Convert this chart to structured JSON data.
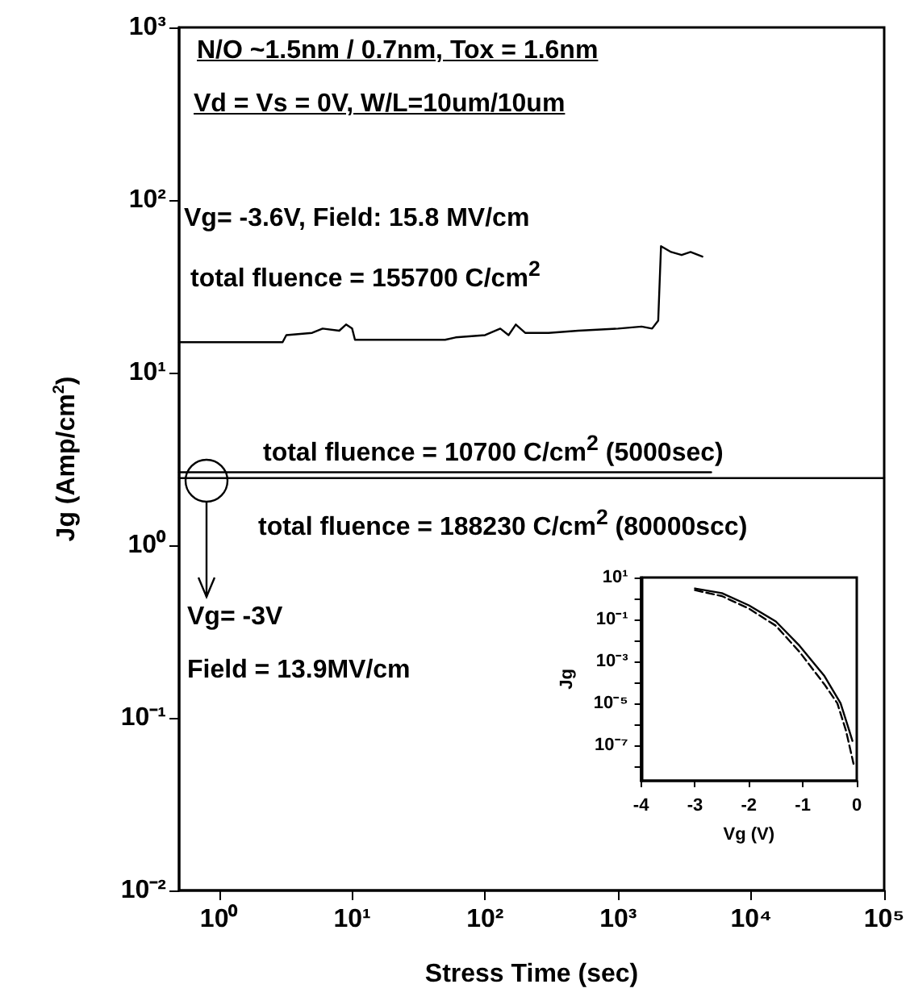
{
  "chart_data": [
    {
      "type": "line",
      "xlabel": "Stress Time (sec)",
      "ylabel": "Jg (Amp/cm$^{2}$)",
      "log": "xy",
      "grid": false,
      "marker": "none",
      "xlim": [
        0.5,
        100000
      ],
      "ylim": [
        0.01,
        1000
      ],
      "xticks": [
        {
          "value": 1,
          "label": "10⁰"
        },
        {
          "value": 10,
          "label": "10¹"
        },
        {
          "value": 100,
          "label": "10²"
        },
        {
          "value": 1000,
          "label": "10³"
        },
        {
          "value": 10000,
          "label": "10⁴"
        },
        {
          "value": 100000,
          "label": "10⁵"
        }
      ],
      "yticks": [
        {
          "value": 0.01,
          "label": "10⁻²"
        },
        {
          "value": 0.1,
          "label": "10⁻¹"
        },
        {
          "value": 1,
          "label": "10⁰"
        },
        {
          "value": 10,
          "label": "10¹"
        },
        {
          "value": 100,
          "label": "10²"
        },
        {
          "value": 1000,
          "label": "10³"
        }
      ],
      "annotations": [
        "N/O ~1.5nm / 0.7nm, Tox = 1.6nm",
        "Vd = Vs = 0V, W/L=10um/10um",
        "Vg= -3.6V, Field: 15.8 MV/cm",
        "total fluence = 155700 C/cm$^{2}$",
        "total fluence = 10700 C/cm$^{2}$ (5000sec)",
        "total fluence = 188230 C/cm$^{2}$ (80000scc)",
        "Vg= -3V",
        "Field = 13.9MV/cm"
      ],
      "series": [
        {
          "color": "#000000",
          "line_style": "solid",
          "x": [
            0.5,
            3,
            3.2,
            5,
            6,
            8,
            9,
            10,
            10.5,
            50,
            60,
            100,
            130,
            150,
            170,
            200,
            300,
            500,
            1000,
            1500,
            1800,
            2000,
            2100,
            2500,
            3000,
            3500,
            4300
          ],
          "values": [
            15,
            15,
            16.5,
            17,
            18,
            17.5,
            19,
            18,
            15.5,
            15.5,
            16,
            16.5,
            18,
            16.5,
            19,
            17,
            17,
            17.5,
            18,
            18.5,
            18,
            20,
            54,
            50,
            48,
            50,
            47
          ]
        },
        {
          "color": "#000000",
          "line_style": "solid",
          "x": [
            0.5,
            5000
          ],
          "values": [
            2.65,
            2.65
          ]
        },
        {
          "color": "#000000",
          "line_style": "solid",
          "x": [
            0.5,
            100000
          ],
          "values": [
            2.45,
            2.45
          ]
        }
      ]
    },
    {
      "type": "line",
      "xlabel": "Vg (V)",
      "ylabel": "Jg",
      "log": "y",
      "grid": false,
      "marker": "none",
      "xlim": [
        -4,
        0
      ],
      "ylim": [
        2e-09,
        10
      ],
      "xticks": [
        -4,
        -3,
        -2,
        -1,
        0
      ],
      "yticks": [
        {
          "value": 1e-08,
          "label": null
        },
        {
          "value": 1e-07,
          "label": "10⁻⁷"
        },
        {
          "value": 1e-06,
          "label": null
        },
        {
          "value": 1e-05,
          "label": "10⁻⁵"
        },
        {
          "value": 0.0001,
          "label": null
        },
        {
          "value": 0.001,
          "label": "10⁻³"
        },
        {
          "value": 0.01,
          "label": null
        },
        {
          "value": 0.1,
          "label": "10⁻¹"
        },
        {
          "value": 1,
          "label": null
        },
        {
          "value": 10,
          "label": "10¹"
        }
      ],
      "series": [
        {
          "color": "#000000",
          "line_style": "solid",
          "x": [
            -3,
            -2.5,
            -2,
            -1.5,
            -1.06,
            -0.6,
            -0.3,
            -0.14,
            -0.08
          ],
          "values": [
            3,
            1.8,
            0.47,
            0.08,
            0.0055,
            0.0002,
            1e-05,
            5e-07,
            1.6e-07
          ]
        },
        {
          "color": "#000000",
          "line_style": "dashed",
          "x": [
            -3,
            -2.5,
            -2,
            -1.5,
            -1.06,
            -0.6,
            -0.36,
            -0.2,
            -0.06
          ],
          "values": [
            2.5,
            1.3,
            0.33,
            0.05,
            0.0028,
            8e-05,
            1e-05,
            5e-07,
            1.3e-08
          ]
        }
      ]
    }
  ]
}
